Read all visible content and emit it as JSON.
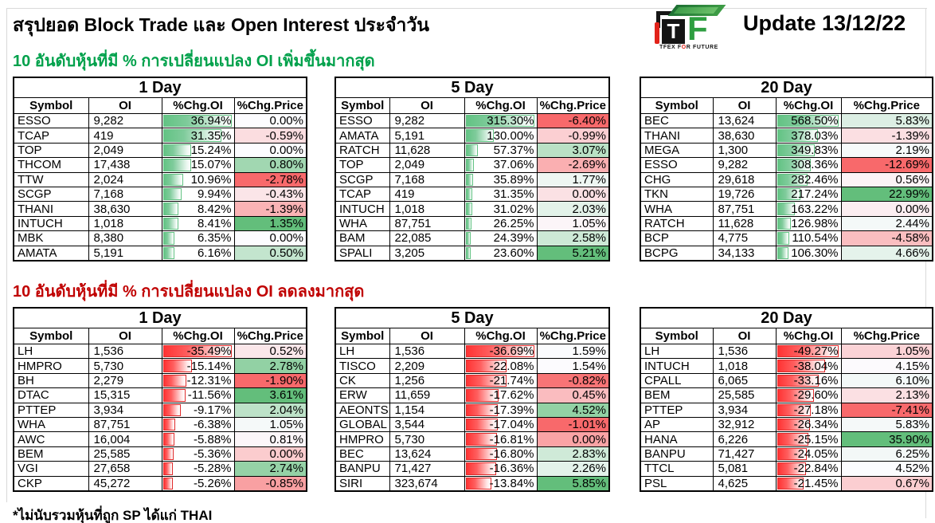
{
  "page": {
    "title": "สรุปยอด Block Trade และ Open Interest ประจำวัน",
    "update_label": "Update 13/12/22",
    "footnote": "*ไม่นับรวมหุ้นที่ถูก SP ได้แก่ THAI",
    "logo": {
      "monogram_t": "T",
      "monogram_f": "F",
      "tagline_prefix": "TFEX F",
      "tagline_o": "O",
      "tagline_suffix": "R FUTURE"
    }
  },
  "sections": [
    {
      "id": "increase",
      "title": "10 อันดับหุ้นที่มี % การเปลี่ยนแปลง OI เพิ่มขึ้นมากสุด",
      "title_color": "#00A14B",
      "bar_style": "green"
    },
    {
      "id": "decrease",
      "title": "10 อันดับหุ้นที่มี % การเปลี่ยนแปลง OI ลดลงมากสุด",
      "title_color": "#C00000",
      "bar_style": "red"
    }
  ],
  "columns": [
    "Symbol",
    "OI",
    "%Chg.OI",
    "%Chg.Price"
  ],
  "colors": {
    "scale_min_red": "#F8696B",
    "scale_mid_white": "#FCFCFF",
    "scale_max_green": "#63BE7B",
    "bar_green": "#63C384",
    "bar_red": "#FF3333",
    "title_green": "#00A14B",
    "title_red": "#C00000"
  },
  "chart_data": [
    {
      "type": "table",
      "section": "increase",
      "period": "1 Day",
      "columns": [
        "Symbol",
        "OI",
        "%Chg.OI",
        "%Chg.Price"
      ],
      "rows": [
        [
          "ESSO",
          9282,
          36.94,
          0.0
        ],
        [
          "TCAP",
          419,
          31.35,
          -0.59
        ],
        [
          "TOP",
          2049,
          15.24,
          0.0
        ],
        [
          "THCOM",
          17438,
          15.07,
          0.8
        ],
        [
          "TTW",
          2024,
          10.96,
          -2.78
        ],
        [
          "SCGP",
          7168,
          9.94,
          -0.43
        ],
        [
          "THANI",
          38630,
          8.42,
          -1.39
        ],
        [
          "INTUCH",
          1018,
          8.41,
          1.35
        ],
        [
          "MBK",
          8380,
          6.35,
          0.0
        ],
        [
          "AMATA",
          5191,
          6.16,
          0.5
        ]
      ]
    },
    {
      "type": "table",
      "section": "increase",
      "period": "5 Day",
      "columns": [
        "Symbol",
        "OI",
        "%Chg.OI",
        "%Chg.Price"
      ],
      "rows": [
        [
          "ESSO",
          9282,
          315.3,
          -6.4
        ],
        [
          "AMATA",
          5191,
          130.0,
          -0.99
        ],
        [
          "RATCH",
          11628,
          57.37,
          3.07
        ],
        [
          "TOP",
          2049,
          37.06,
          -2.69
        ],
        [
          "SCGP",
          7168,
          35.89,
          1.77
        ],
        [
          "TCAP",
          419,
          31.35,
          0.0
        ],
        [
          "INTUCH",
          1018,
          31.02,
          2.03
        ],
        [
          "WHA",
          87751,
          26.25,
          1.05
        ],
        [
          "BAM",
          22085,
          24.39,
          2.58
        ],
        [
          "SPALI",
          3205,
          23.6,
          5.21
        ]
      ]
    },
    {
      "type": "table",
      "section": "increase",
      "period": "20 Day",
      "columns": [
        "Symbol",
        "OI",
        "%Chg.OI",
        "%Chg.Price"
      ],
      "rows": [
        [
          "BEC",
          13624,
          568.5,
          5.83
        ],
        [
          "THANI",
          38630,
          378.03,
          -1.39
        ],
        [
          "MEGA",
          1300,
          349.83,
          2.19
        ],
        [
          "ESSO",
          9282,
          308.36,
          -12.69
        ],
        [
          "CHG",
          29618,
          282.46,
          0.56
        ],
        [
          "TKN",
          19726,
          217.24,
          22.99
        ],
        [
          "WHA",
          87751,
          163.22,
          0.0
        ],
        [
          "RATCH",
          11628,
          126.98,
          2.44
        ],
        [
          "BCP",
          4775,
          110.54,
          -4.58
        ],
        [
          "BCPG",
          34133,
          106.3,
          4.66
        ]
      ]
    },
    {
      "type": "table",
      "section": "decrease",
      "period": "1 Day",
      "columns": [
        "Symbol",
        "OI",
        "%Chg.OI",
        "%Chg.Price"
      ],
      "rows": [
        [
          "LH",
          1536,
          -35.49,
          0.52
        ],
        [
          "HMPRO",
          5730,
          -15.14,
          2.78
        ],
        [
          "BH",
          2279,
          -12.31,
          -1.9
        ],
        [
          "DTAC",
          15315,
          -11.56,
          3.61
        ],
        [
          "PTTEP",
          3934,
          -9.17,
          2.04
        ],
        [
          "WHA",
          87751,
          -6.38,
          1.05
        ],
        [
          "AWC",
          16004,
          -5.88,
          0.81
        ],
        [
          "BEM",
          25585,
          -5.36,
          0.0
        ],
        [
          "VGI",
          27658,
          -5.28,
          2.74
        ],
        [
          "CKP",
          45272,
          -5.26,
          -0.85
        ]
      ]
    },
    {
      "type": "table",
      "section": "decrease",
      "period": "5 Day",
      "columns": [
        "Symbol",
        "OI",
        "%Chg.OI",
        "%Chg.Price"
      ],
      "rows": [
        [
          "LH",
          1536,
          -36.69,
          1.59
        ],
        [
          "TISCO",
          2209,
          -22.08,
          1.54
        ],
        [
          "CK",
          1256,
          -21.74,
          -0.82
        ],
        [
          "ERW",
          11659,
          -17.62,
          0.45
        ],
        [
          "AEONTS",
          1154,
          -17.39,
          4.52
        ],
        [
          "GLOBAL",
          3544,
          -17.04,
          -1.01
        ],
        [
          "HMPRO",
          5730,
          -16.81,
          0.0
        ],
        [
          "BEC",
          13624,
          -16.8,
          2.83
        ],
        [
          "BANPU",
          71427,
          -16.36,
          2.26
        ],
        [
          "SIRI",
          323674,
          -13.84,
          5.85
        ]
      ]
    },
    {
      "type": "table",
      "section": "decrease",
      "period": "20 Day",
      "columns": [
        "Symbol",
        "OI",
        "%Chg.OI",
        "%Chg.Price"
      ],
      "rows": [
        [
          "LH",
          1536,
          -49.27,
          1.05
        ],
        [
          "INTUCH",
          1018,
          -38.04,
          4.15
        ],
        [
          "CPALL",
          6065,
          -33.16,
          6.1
        ],
        [
          "BEM",
          25585,
          -29.6,
          2.13
        ],
        [
          "PTTEP",
          3934,
          -27.18,
          -7.41
        ],
        [
          "AP",
          32912,
          -26.34,
          5.83
        ],
        [
          "HANA",
          6226,
          -25.15,
          35.9
        ],
        [
          "BANPU",
          71427,
          -24.05,
          6.25
        ],
        [
          "TTCL",
          5081,
          -22.84,
          4.52
        ],
        [
          "PSL",
          4625,
          -21.45,
          0.67
        ]
      ]
    }
  ]
}
